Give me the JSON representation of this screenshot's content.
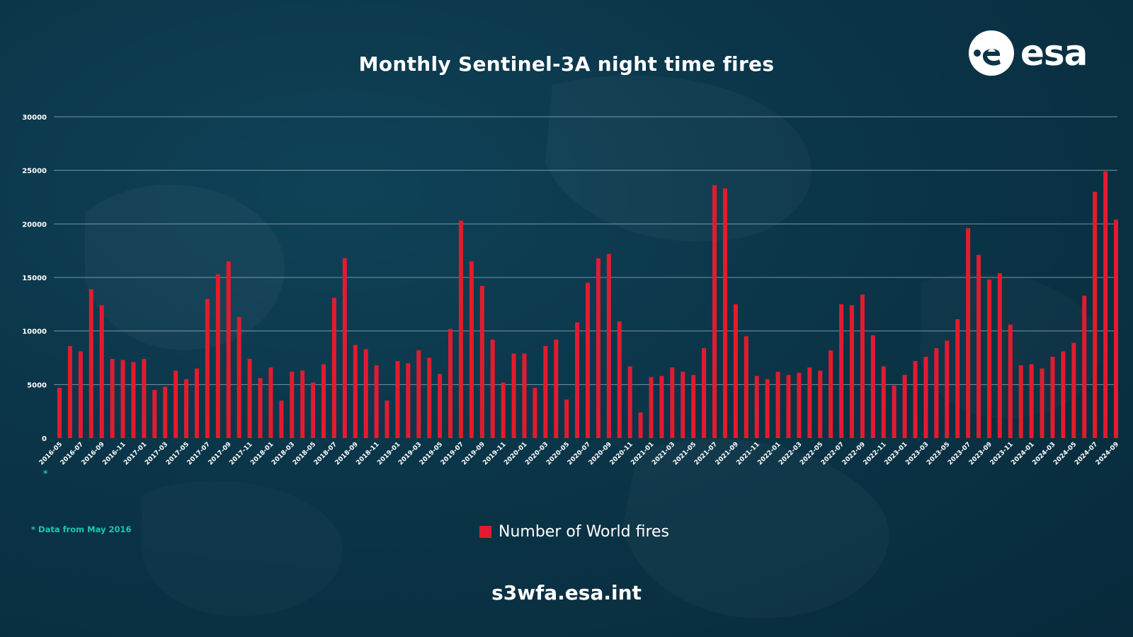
{
  "title": "Monthly Sentinel-3A night time fires",
  "footnote": "* Data from May 2016",
  "footnote_marker": "*",
  "url": "s3wfa.esa.int",
  "logo_text": "esa",
  "colors": {
    "bar": "#e31b2f",
    "grid": "#8aa6b4",
    "footnote": "#1ec6b4"
  },
  "chart_data": {
    "type": "bar",
    "ylim": [
      0,
      30000
    ],
    "yticks": [
      0,
      5000,
      10000,
      15000,
      20000,
      25000,
      30000
    ],
    "grid": true,
    "legend_position": "bottom-center",
    "series": [
      {
        "name": "Number of World fires",
        "values": [
          4700,
          8600,
          8100,
          13900,
          12400,
          7400,
          7300,
          7100,
          7400,
          4500,
          4800,
          6300,
          5500,
          6500,
          13000,
          15300,
          16500,
          11300,
          7400,
          5600,
          6600,
          3500,
          6200,
          6300,
          5200,
          6900,
          13100,
          16800,
          8700,
          8300,
          6800,
          3500,
          7200,
          7000,
          8200,
          7500,
          6000,
          10200,
          20300,
          16500,
          14200,
          9200,
          5200,
          7900,
          7900,
          4700,
          8600,
          9200,
          3600,
          10800,
          14500,
          16800,
          17200,
          10900,
          6700,
          2400,
          5700,
          5800,
          6600,
          6200,
          5900,
          8400,
          23600,
          23300,
          12500,
          9500,
          5800,
          5500,
          6200,
          5900,
          6100,
          6600,
          6300,
          8200,
          12500,
          12400,
          13400,
          9600,
          6700,
          4900,
          5900,
          7200,
          7600,
          8400,
          9100,
          11100,
          19600,
          17100,
          14800,
          15400,
          10600,
          6800,
          6900,
          6500,
          7600,
          8100,
          8900,
          13300,
          23000,
          24900,
          20400
        ]
      }
    ],
    "tick_labels": [
      "2016-05",
      "2016-07",
      "2016-09",
      "2016-11",
      "2017-01",
      "2017-03",
      "2017-05",
      "2017-07",
      "2017-09",
      "2017-11",
      "2018-01",
      "2018-03",
      "2018-05",
      "2018-07",
      "2018-09",
      "2018-11",
      "2019-01",
      "2019-03",
      "2019-05",
      "2019-07",
      "2019-09",
      "2019-11",
      "2020-01",
      "2020-03",
      "2020-05",
      "2020-07",
      "2020-09",
      "2020-11",
      "2021-01",
      "2021-03",
      "2021-05",
      "2021-07",
      "2021-09",
      "2021-11",
      "2022-01",
      "2022-03",
      "2022-05",
      "2022-07",
      "2022-09",
      "2022-11",
      "2023-01",
      "2023-03",
      "2023-05",
      "2023-07",
      "2023-09",
      "2023-11",
      "2024-01",
      "2024-03",
      "2024-05",
      "2024-07",
      "2024-09"
    ]
  }
}
